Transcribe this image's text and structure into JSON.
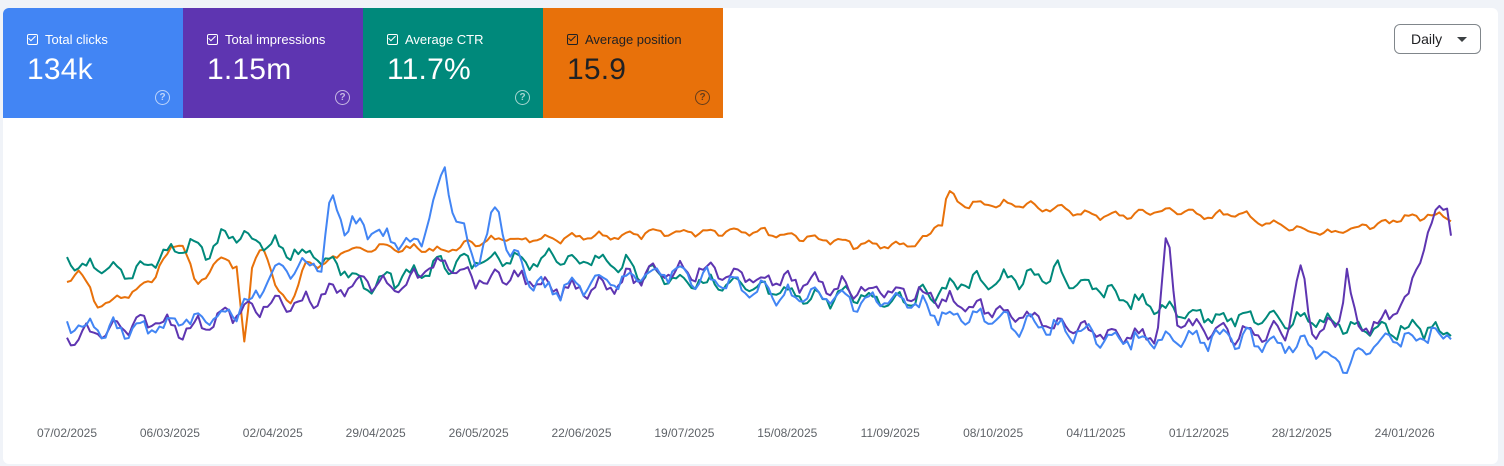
{
  "cards": [
    {
      "label": "Total clicks",
      "value": "134k",
      "color": "#4285f4"
    },
    {
      "label": "Total impressions",
      "value": "1.15m",
      "color": "#5e35b1"
    },
    {
      "label": "Average CTR",
      "value": "11.7%",
      "color": "#00897b"
    },
    {
      "label": "Average position",
      "value": "15.9",
      "color": "#e8710a"
    }
  ],
  "controls": {
    "granularity": "Daily"
  },
  "icons": {
    "help": "help-circle-icon",
    "checkbox": "checkbox-checked-icon",
    "dropdown": "caret-down-icon"
  },
  "chart_data": {
    "type": "line",
    "x_start": "07/02/2025",
    "x_end": "30/01/2026",
    "x_tick_labels": [
      "07/02/2025",
      "06/03/2025",
      "02/04/2025",
      "29/04/2025",
      "26/05/2025",
      "22/06/2025",
      "19/07/2025",
      "15/08/2025",
      "11/09/2025",
      "08/10/2025",
      "04/11/2025",
      "01/12/2025",
      "28/12/2025",
      "24/01/2026"
    ],
    "grid": false,
    "y_axis_labels": "hidden",
    "series": [
      {
        "key": "position",
        "color": "#e8710a",
        "keypoints": [
          [
            0,
            282
          ],
          [
            12,
            270
          ],
          [
            30,
            305
          ],
          [
            50,
            300
          ],
          [
            80,
            285
          ],
          [
            100,
            255
          ],
          [
            115,
            240
          ],
          [
            130,
            288
          ],
          [
            150,
            260
          ],
          [
            170,
            265
          ],
          [
            178,
            350
          ],
          [
            185,
            270
          ],
          [
            195,
            240
          ],
          [
            210,
            295
          ],
          [
            225,
            300
          ],
          [
            240,
            262
          ],
          [
            260,
            265
          ],
          [
            280,
            248
          ],
          [
            320,
            248
          ],
          [
            380,
            250
          ],
          [
            420,
            240
          ],
          [
            480,
            240
          ],
          [
            560,
            235
          ],
          [
            620,
            232
          ],
          [
            680,
            230
          ],
          [
            760,
            240
          ],
          [
            790,
            245
          ],
          [
            810,
            245
          ],
          [
            840,
            245
          ],
          [
            860,
            240
          ],
          [
            870,
            222
          ],
          [
            875,
            225
          ],
          [
            880,
            195
          ],
          [
            900,
            205
          ],
          [
            960,
            205
          ],
          [
            1000,
            210
          ],
          [
            1020,
            215
          ],
          [
            1060,
            215
          ],
          [
            1100,
            210
          ],
          [
            1140,
            215
          ],
          [
            1180,
            215
          ],
          [
            1200,
            225
          ],
          [
            1210,
            225
          ],
          [
            1260,
            235
          ],
          [
            1300,
            225
          ],
          [
            1360,
            215
          ],
          [
            1400,
            222
          ],
          [
            1430,
            215
          ],
          [
            1450,
            232
          ]
        ]
      },
      {
        "key": "ctr",
        "color": "#00897b",
        "keypoints": [
          [
            0,
            262
          ],
          [
            30,
            270
          ],
          [
            60,
            275
          ],
          [
            90,
            258
          ],
          [
            120,
            245
          ],
          [
            140,
            252
          ],
          [
            160,
            235
          ],
          [
            180,
            240
          ],
          [
            220,
            250
          ],
          [
            250,
            255
          ],
          [
            280,
            270
          ],
          [
            300,
            290
          ],
          [
            320,
            280
          ],
          [
            340,
            275
          ],
          [
            380,
            265
          ],
          [
            420,
            262
          ],
          [
            460,
            260
          ],
          [
            500,
            258
          ],
          [
            540,
            262
          ],
          [
            580,
            272
          ],
          [
            620,
            280
          ],
          [
            650,
            285
          ],
          [
            680,
            288
          ],
          [
            720,
            295
          ],
          [
            760,
            298
          ],
          [
            790,
            295
          ],
          [
            820,
            300
          ],
          [
            860,
            295
          ],
          [
            880,
            288
          ],
          [
            900,
            282
          ],
          [
            940,
            280
          ],
          [
            980,
            278
          ],
          [
            990,
            265
          ],
          [
            1000,
            285
          ],
          [
            1040,
            290
          ],
          [
            1060,
            300
          ],
          [
            1100,
            310
          ],
          [
            1140,
            315
          ],
          [
            1180,
            318
          ],
          [
            1220,
            320
          ],
          [
            1240,
            318
          ],
          [
            1260,
            322
          ],
          [
            1280,
            325
          ],
          [
            1300,
            330
          ],
          [
            1340,
            328
          ],
          [
            1380,
            332
          ],
          [
            1420,
            328
          ],
          [
            1450,
            322
          ]
        ]
      },
      {
        "key": "impressions",
        "color": "#5e35b1",
        "keypoints": [
          [
            0,
            340
          ],
          [
            30,
            332
          ],
          [
            60,
            328
          ],
          [
            90,
            320
          ],
          [
            120,
            330
          ],
          [
            150,
            318
          ],
          [
            180,
            310
          ],
          [
            200,
            305
          ],
          [
            220,
            305
          ],
          [
            245,
            300
          ],
          [
            260,
            295
          ],
          [
            290,
            282
          ],
          [
            310,
            280
          ],
          [
            330,
            290
          ],
          [
            355,
            272
          ],
          [
            375,
            262
          ],
          [
            380,
            258
          ],
          [
            400,
            275
          ],
          [
            420,
            282
          ],
          [
            440,
            275
          ],
          [
            460,
            280
          ],
          [
            480,
            290
          ],
          [
            520,
            288
          ],
          [
            560,
            280
          ],
          [
            600,
            270
          ],
          [
            640,
            270
          ],
          [
            680,
            278
          ],
          [
            720,
            282
          ],
          [
            760,
            285
          ],
          [
            800,
            290
          ],
          [
            840,
            292
          ],
          [
            880,
            300
          ],
          [
            920,
            310
          ],
          [
            960,
            318
          ],
          [
            1000,
            330
          ],
          [
            1040,
            332
          ],
          [
            1060,
            334
          ],
          [
            1090,
            335
          ],
          [
            1100,
            228
          ],
          [
            1110,
            325
          ],
          [
            1140,
            330
          ],
          [
            1180,
            335
          ],
          [
            1220,
            330
          ],
          [
            1233,
            265
          ],
          [
            1245,
            330
          ],
          [
            1270,
            325
          ],
          [
            1280,
            270
          ],
          [
            1290,
            330
          ],
          [
            1320,
            320
          ],
          [
            1340,
            300
          ],
          [
            1362,
            225
          ],
          [
            1380,
            200
          ],
          [
            1390,
            260
          ],
          [
            1400,
            290
          ],
          [
            1420,
            275
          ],
          [
            1440,
            275
          ],
          [
            1450,
            315
          ]
        ]
      },
      {
        "key": "clicks",
        "color": "#4285f4",
        "keypoints": [
          [
            0,
            325
          ],
          [
            30,
            330
          ],
          [
            60,
            330
          ],
          [
            90,
            328
          ],
          [
            120,
            322
          ],
          [
            150,
            318
          ],
          [
            175,
            310
          ],
          [
            185,
            298
          ],
          [
            200,
            285
          ],
          [
            215,
            270
          ],
          [
            235,
            262
          ],
          [
            255,
            265
          ],
          [
            265,
            195
          ],
          [
            275,
            222
          ],
          [
            300,
            230
          ],
          [
            320,
            240
          ],
          [
            340,
            245
          ],
          [
            355,
            238
          ],
          [
            370,
            195
          ],
          [
            378,
            172
          ],
          [
            390,
            222
          ],
          [
            410,
            262
          ],
          [
            420,
            232
          ],
          [
            430,
            205
          ],
          [
            440,
            250
          ],
          [
            460,
            275
          ],
          [
            480,
            290
          ],
          [
            520,
            285
          ],
          [
            560,
            280
          ],
          [
            600,
            272
          ],
          [
            640,
            278
          ],
          [
            680,
            290
          ],
          [
            720,
            295
          ],
          [
            760,
            298
          ],
          [
            800,
            300
          ],
          [
            840,
            302
          ],
          [
            880,
            315
          ],
          [
            920,
            320
          ],
          [
            960,
            325
          ],
          [
            1000,
            330
          ],
          [
            1040,
            338
          ],
          [
            1080,
            342
          ],
          [
            1120,
            340
          ],
          [
            1160,
            338
          ],
          [
            1200,
            342
          ],
          [
            1240,
            345
          ],
          [
            1260,
            355
          ],
          [
            1280,
            365
          ],
          [
            1300,
            345
          ],
          [
            1340,
            338
          ],
          [
            1380,
            335
          ],
          [
            1420,
            332
          ],
          [
            1450,
            340
          ]
        ]
      }
    ]
  }
}
